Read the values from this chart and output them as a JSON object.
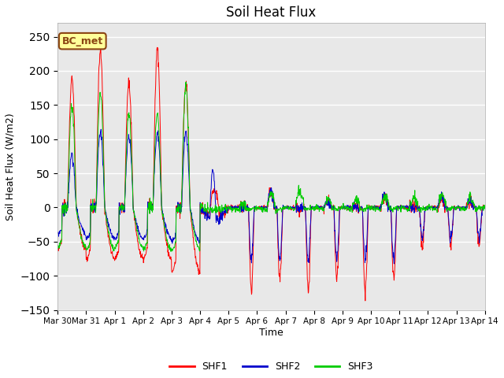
{
  "title": "Soil Heat Flux",
  "ylabel": "Soil Heat Flux (W/m2)",
  "xlabel": "Time",
  "ylim": [
    -150,
    270
  ],
  "yticks": [
    -150,
    -100,
    -50,
    0,
    50,
    100,
    150,
    200,
    250
  ],
  "bg_color": "#e8e8e8",
  "fig_color": "#ffffff",
  "line_colors": {
    "SHF1": "#ff0000",
    "SHF2": "#0000cc",
    "SHF3": "#00cc00"
  },
  "annotation_text": "BC_met",
  "annotation_bg": "#ffff99",
  "annotation_border": "#8b4513",
  "xtick_labels": [
    "Mar 30",
    "Mar 31",
    "Apr 1",
    "Apr 2",
    "Apr 3",
    "Apr 4",
    "Apr 5",
    "Apr 6",
    "Apr 7",
    "Apr 8",
    "Apr 9",
    "Apr 10",
    "Apr 11",
    "Apr 12",
    "Apr 13",
    "Apr 14"
  ],
  "n_days": 15,
  "pts_per_day": 96
}
